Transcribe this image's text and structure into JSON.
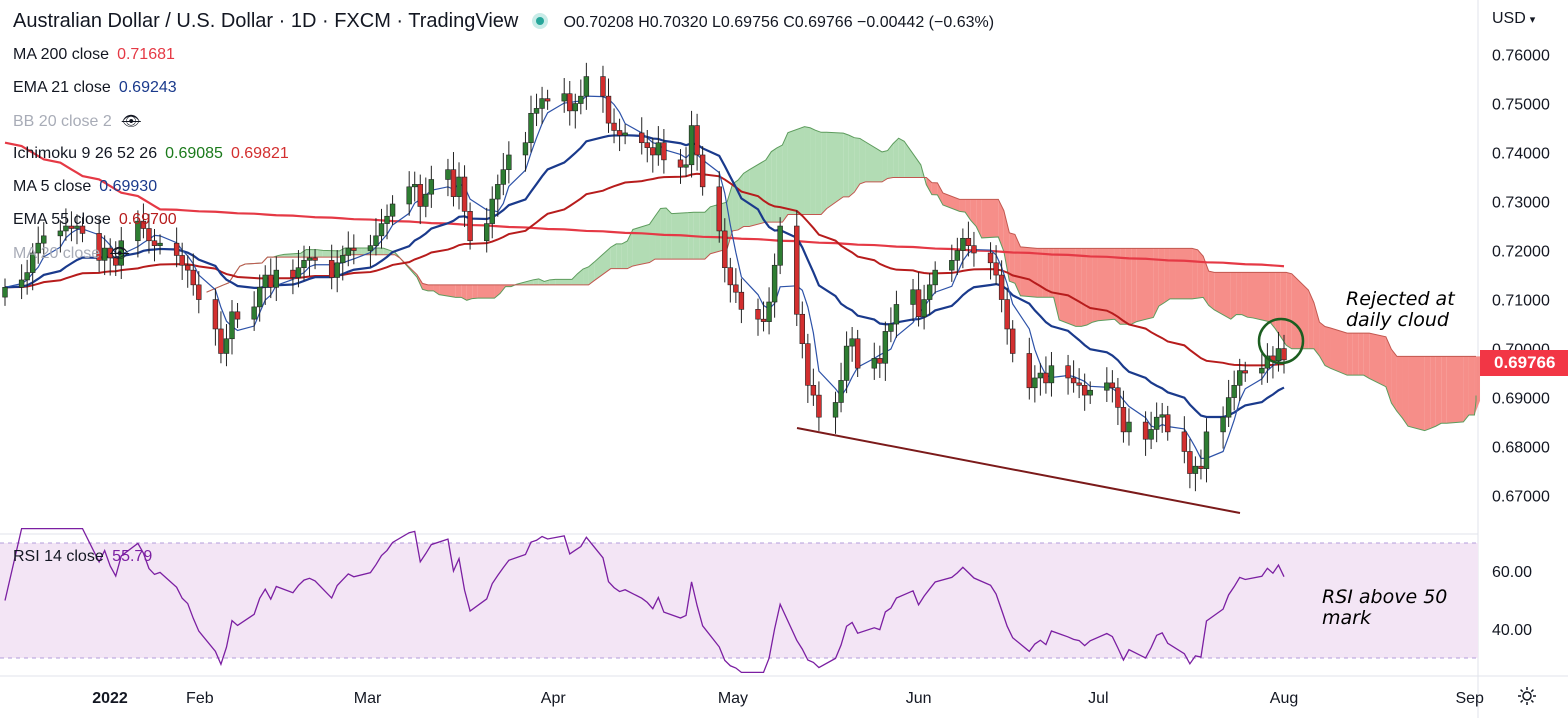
{
  "header": {
    "title": "Australian Dollar / U.S. Dollar · 1D · FXCM · TradingView",
    "ohlc": "O0.70208 H0.70320 L0.69756 C0.69766 −0.00442 (−0.63%)"
  },
  "legend": [
    {
      "label": "MA 200 close",
      "value": "0.71681",
      "value2": "",
      "color": "#e53945",
      "muted": false,
      "eye": false
    },
    {
      "label": "EMA 21 close",
      "value": "0.69243",
      "value2": "",
      "color": "#1a3a8c",
      "muted": false,
      "eye": false
    },
    {
      "label": "BB 20 close 2",
      "value": "",
      "value2": "",
      "color": "#a8acb7",
      "muted": true,
      "eye": true
    },
    {
      "label": "Ichimoku 9 26 52 26",
      "value": "0.69085",
      "value2": "0.69821",
      "color": "#1b7a1b",
      "color2": "#d32f2f",
      "muted": false,
      "eye": false
    },
    {
      "label": "MA 5 close",
      "value": "0.69930",
      "value2": "",
      "color": "#1a3a8c",
      "muted": false,
      "eye": false
    },
    {
      "label": "EMA 55 close",
      "value": "0.69700",
      "value2": "",
      "color": "#b71c1c",
      "muted": false,
      "eye": false
    },
    {
      "label": "MA 20 close",
      "value": "",
      "value2": "",
      "color": "#a8acb7",
      "muted": true,
      "eye": true
    }
  ],
  "currency": "USD",
  "last_price": "0.69766",
  "annotations": {
    "cloud_note": [
      "Rejected at",
      "daily cloud"
    ],
    "rsi_note": [
      "RSI above 50",
      "mark"
    ]
  },
  "rsi_legend": {
    "label": "RSI 14 close",
    "value": "55.79"
  },
  "colors": {
    "up": "#2e7d32",
    "down": "#d32f2f",
    "cloud_bull": "#a5d6a7",
    "cloud_bear": "#f47a74",
    "rsi": "#7b1fa2",
    "rsi_bg": "#f3e5f5"
  },
  "chart_data": {
    "type": "candlestick",
    "symbol": "AUDUSD",
    "timeframe": "1D",
    "ylim": [
      0.664,
      0.765
    ],
    "y_ticks": [
      "0.67000",
      "0.68000",
      "0.69000",
      "0.70000",
      "0.71000",
      "0.72000",
      "0.73000",
      "0.74000",
      "0.75000",
      "0.76000"
    ],
    "x_ticks": [
      {
        "label": "2022",
        "day": 17
      },
      {
        "label": "Feb",
        "day": 32
      },
      {
        "label": "Mar",
        "day": 60
      },
      {
        "label": "Apr",
        "day": 91
      },
      {
        "label": "May",
        "day": 121
      },
      {
        "label": "Jun",
        "day": 152
      },
      {
        "label": "Jul",
        "day": 182
      },
      {
        "label": "Aug",
        "day": 213
      },
      {
        "label": "Sep",
        "day": 244
      }
    ],
    "close": [
      0.7125,
      0.714,
      0.7155,
      0.7195,
      0.7215,
      0.723,
      0.724,
      0.725,
      0.7245,
      0.725,
      0.7235,
      0.718,
      0.7205,
      0.7185,
      0.717,
      0.722,
      0.726,
      0.7245,
      0.722,
      0.721,
      0.7215,
      0.719,
      0.717,
      0.716,
      0.713,
      0.71,
      0.704,
      0.699,
      0.702,
      0.7075,
      0.706,
      0.7085,
      0.7125,
      0.715,
      0.7125,
      0.716,
      0.7145,
      0.7165,
      0.718,
      0.7185,
      0.718,
      0.7145,
      0.7175,
      0.719,
      0.7205,
      0.72,
      0.721,
      0.723,
      0.7255,
      0.727,
      0.7295,
      0.733,
      0.7335,
      0.729,
      0.7315,
      0.7345,
      0.7365,
      0.731,
      0.735,
      0.728,
      0.722,
      0.7255,
      0.7305,
      0.7335,
      0.7365,
      0.7395,
      0.742,
      0.748,
      0.749,
      0.751,
      0.7505,
      0.752,
      0.7485,
      0.75,
      0.7515,
      0.7555,
      0.7515,
      0.746,
      0.7445,
      0.7435,
      0.744,
      0.742,
      0.741,
      0.7395,
      0.742,
      0.7385,
      0.737,
      0.7375,
      0.7455,
      0.7395,
      0.733,
      0.724,
      0.7165,
      0.713,
      0.7115,
      0.708,
      0.706,
      0.7055,
      0.7095,
      0.717,
      0.725,
      0.707,
      0.701,
      0.6925,
      0.6905,
      0.686,
      0.689,
      0.6935,
      0.7005,
      0.702,
      0.696,
      0.698,
      0.697,
      0.7035,
      0.705,
      0.709,
      0.712,
      0.7065,
      0.71,
      0.713,
      0.716,
      0.718,
      0.72,
      0.7225,
      0.721,
      0.7195,
      0.7175,
      0.715,
      0.71,
      0.704,
      0.699,
      0.692,
      0.694,
      0.695,
      0.693,
      0.6965,
      0.694,
      0.693,
      0.6925,
      0.6905,
      0.6915,
      0.693,
      0.692,
      0.688,
      0.683,
      0.685,
      0.6815,
      0.6835,
      0.686,
      0.6865,
      0.683,
      0.679,
      0.6745,
      0.676,
      0.6755,
      0.683,
      0.686,
      0.69,
      0.6925,
      0.6955,
      0.695,
      0.696,
      0.6985,
      0.6975,
      0.7,
      0.6977
    ],
    "dates_note": "daily bars from 2021-12-31 to 2022-08-02"
  }
}
